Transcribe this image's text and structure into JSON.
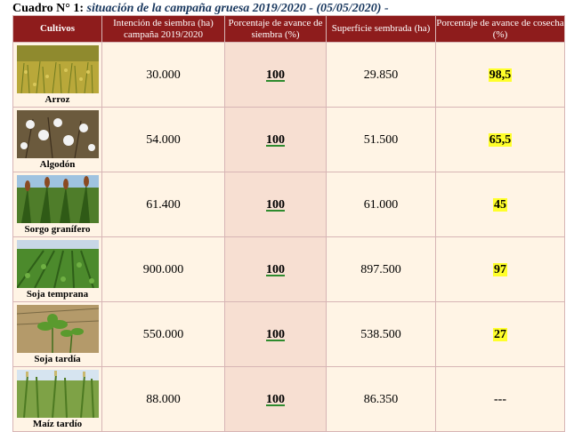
{
  "title": {
    "prefix": "Cuadro N° 1:",
    "text": "situación de la campaña gruesa 2019/2020 - (05/05/2020) -"
  },
  "headers": [
    "Cultivos",
    "Intención de siembra (ha) campaña 2019/2020",
    "Porcentaje de avance de siembra (%)",
    "Superficie sembrada (ha)",
    "Porcentaje de avance de cosecha (%)"
  ],
  "rows": [
    {
      "crop": "Arroz",
      "icon": "rice-field",
      "intencion": "30.000",
      "avance_siembra": "100",
      "superficie": "29.850",
      "avance_cosecha": "98,5"
    },
    {
      "crop": "Algodón",
      "icon": "cotton-plant",
      "intencion": "54.000",
      "avance_siembra": "100",
      "superficie": "51.500",
      "avance_cosecha": "65,5"
    },
    {
      "crop": "Sorgo granífero",
      "icon": "sorghum-plant",
      "intencion": "61.400",
      "avance_siembra": "100",
      "superficie": "61.000",
      "avance_cosecha": "45"
    },
    {
      "crop": "Soja temprana",
      "icon": "soy-field",
      "intencion": "900.000",
      "avance_siembra": "100",
      "superficie": "897.500",
      "avance_cosecha": "97"
    },
    {
      "crop": "Soja tardía",
      "icon": "soy-seedling",
      "intencion": "550.000",
      "avance_siembra": "100",
      "superficie": "538.500",
      "avance_cosecha": "27"
    },
    {
      "crop": "Maíz tardío",
      "icon": "corn-field",
      "intencion": "88.000",
      "avance_siembra": "100",
      "superficie": "86.350",
      "avance_cosecha": "---"
    }
  ],
  "colors": {
    "header_bg": "#8e1c1c",
    "row_bg": "#fff4e5",
    "highlight": "#ffff2a",
    "underline": "#2e8b2e"
  }
}
